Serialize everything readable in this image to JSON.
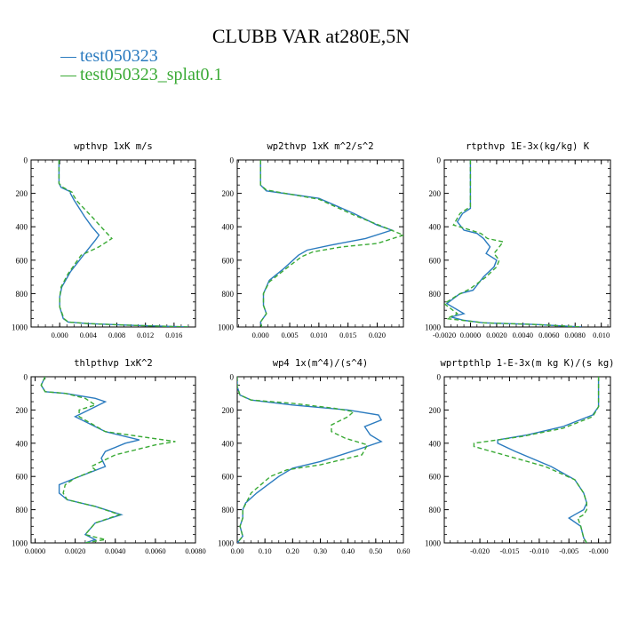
{
  "title": "CLUBB VAR at280E,5N",
  "legend": [
    {
      "label": "test050323",
      "color": "#2b7bbf"
    },
    {
      "label": "test050323_splat0.1",
      "color": "#3aaa35"
    }
  ],
  "chart_data": [
    {
      "type": "line",
      "title": "wpthvp  1xK m/s",
      "xlabel": "",
      "ylabel": "",
      "xlim": [
        -0.004,
        0.019
      ],
      "ylim": [
        1000,
        0
      ],
      "xticks": [
        0.0,
        0.004,
        0.008,
        0.012,
        0.016
      ],
      "xtick_labels": [
        "0.000",
        "0.004",
        "0.008",
        "0.012",
        "0.016"
      ],
      "yticks": [
        0,
        200,
        400,
        600,
        800,
        1000
      ],
      "series": [
        {
          "name": "test050323",
          "x": [
            -0.0001,
            -0.0001,
            -0.0001,
            0.0002,
            0.0015,
            0.0015,
            0.002,
            0.0035,
            0.0045,
            0.0055,
            0.005,
            0.0035,
            0.0015,
            0.0003,
            0.0,
            0.0,
            0.0005,
            0.0012,
            0.004,
            0.01,
            0.018
          ],
          "y": [
            0,
            80,
            140,
            165,
            190,
            200,
            240,
            340,
            400,
            450,
            480,
            560,
            670,
            760,
            820,
            880,
            950,
            970,
            980,
            990,
            1000
          ]
        },
        {
          "name": "test050323_splat0.1",
          "x": [
            -0.0001,
            -0.0001,
            -0.0001,
            0.0003,
            0.0018,
            0.0018,
            0.0025,
            0.0045,
            0.006,
            0.0073,
            0.0055,
            0.003,
            0.0012,
            0.0002,
            0.0,
            0.0,
            0.0006,
            0.0012,
            0.004,
            0.01,
            0.018
          ],
          "y": [
            0,
            80,
            140,
            160,
            195,
            205,
            250,
            340,
            410,
            470,
            520,
            570,
            680,
            760,
            820,
            880,
            950,
            970,
            980,
            990,
            1000
          ]
        }
      ]
    },
    {
      "type": "line",
      "title": "wp2thvp  1xK m^2/s^2",
      "xlabel": "",
      "ylabel": "",
      "xlim": [
        -0.004,
        0.0245
      ],
      "ylim": [
        1000,
        0
      ],
      "xticks": [
        0.0,
        0.005,
        0.01,
        0.015,
        0.02
      ],
      "xtick_labels": [
        "0.000",
        "0.005",
        "0.010",
        "0.015",
        "0.020"
      ],
      "yticks": [
        0,
        200,
        400,
        600,
        800,
        1000
      ],
      "series": [
        {
          "name": "test050323",
          "x": [
            0.0,
            0.0,
            0.0,
            0.001,
            0.005,
            0.01,
            0.016,
            0.02,
            0.0225,
            0.018,
            0.012,
            0.008,
            0.0065,
            0.004,
            0.0015,
            0.0005,
            0.0005,
            0.001,
            0.0,
            0.0002
          ],
          "y": [
            0,
            100,
            150,
            185,
            205,
            230,
            320,
            390,
            420,
            470,
            510,
            540,
            570,
            650,
            720,
            800,
            870,
            920,
            970,
            1000
          ]
        },
        {
          "name": "test050323_splat0.1",
          "x": [
            0.0,
            0.0,
            0.0,
            0.001,
            0.005,
            0.01,
            0.016,
            0.021,
            0.0245,
            0.02,
            0.014,
            0.009,
            0.007,
            0.004,
            0.0015,
            0.0005,
            0.0005,
            0.001,
            0.0,
            0.0002
          ],
          "y": [
            0,
            100,
            150,
            180,
            205,
            235,
            330,
            400,
            450,
            500,
            520,
            550,
            580,
            660,
            730,
            800,
            870,
            920,
            970,
            1000
          ]
        }
      ]
    },
    {
      "type": "line",
      "title": "rtpthvp  1E-3x(kg/kg) K",
      "xlabel": "",
      "ylabel": "",
      "xlim": [
        -0.002,
        0.0107
      ],
      "ylim": [
        1000,
        0
      ],
      "xticks": [
        -0.002,
        0.0,
        0.002,
        0.004,
        0.006,
        0.008,
        0.01
      ],
      "xtick_labels": [
        "-0.0020",
        "0.0000",
        "0.0020",
        "0.0040",
        "0.0060",
        "0.0080",
        "0.010"
      ],
      "yticks": [
        0,
        200,
        400,
        600,
        800,
        1000
      ],
      "series": [
        {
          "name": "test050323",
          "x": [
            0.0,
            0.0,
            0.0,
            0.0,
            -0.0006,
            -0.001,
            -0.0005,
            0.0005,
            0.001,
            0.0015,
            0.0012,
            0.002,
            0.0018,
            0.001,
            0.0002,
            -0.0008,
            -0.0018,
            -0.0005,
            -0.0015,
            -0.0005,
            0.001,
            0.005,
            0.0085
          ],
          "y": [
            0,
            100,
            200,
            290,
            320,
            370,
            420,
            440,
            470,
            520,
            560,
            600,
            640,
            700,
            780,
            800,
            860,
            920,
            940,
            960,
            975,
            985,
            1000
          ]
        },
        {
          "name": "test050323_splat0.1",
          "x": [
            0.0,
            0.0,
            0.0,
            0.0,
            -0.0008,
            -0.0013,
            -0.0004,
            0.0008,
            0.0013,
            0.0025,
            0.0018,
            0.0022,
            0.002,
            0.0012,
            0.0,
            -0.001,
            -0.002,
            -0.001,
            -0.0018,
            -0.0006,
            0.001,
            0.005,
            0.0085
          ],
          "y": [
            0,
            100,
            200,
            280,
            320,
            390,
            410,
            440,
            470,
            490,
            560,
            600,
            640,
            700,
            770,
            810,
            860,
            920,
            950,
            960,
            975,
            985,
            1000
          ]
        }
      ]
    },
    {
      "type": "line",
      "title": "thlpthvp  1xK^2",
      "xlabel": "",
      "ylabel": "",
      "xlim": [
        -0.0002,
        0.008
      ],
      "ylim": [
        1000,
        0
      ],
      "xticks": [
        0.0,
        0.002,
        0.004,
        0.006,
        0.008
      ],
      "xtick_labels": [
        "0.0000",
        "0.0020",
        "0.0040",
        "0.0060",
        "0.0080"
      ],
      "yticks": [
        0,
        200,
        400,
        600,
        800,
        1000
      ],
      "series": [
        {
          "name": "test050323",
          "x": [
            0.0005,
            0.0003,
            0.0005,
            0.0015,
            0.003,
            0.0035,
            0.003,
            0.002,
            0.0035,
            0.0052,
            0.0045,
            0.0035,
            0.0033,
            0.0035,
            0.002,
            0.0012,
            0.0012,
            0.0016,
            0.003,
            0.0043,
            0.003,
            0.0025,
            0.003,
            0.0025
          ],
          "y": [
            0,
            50,
            90,
            100,
            130,
            150,
            180,
            240,
            330,
            380,
            400,
            450,
            490,
            540,
            610,
            650,
            700,
            740,
            780,
            830,
            880,
            950,
            980,
            1000
          ]
        },
        {
          "name": "test050323_splat0.1",
          "x": [
            0.0005,
            0.0003,
            0.0005,
            0.0015,
            0.0025,
            0.003,
            0.0022,
            0.0022,
            0.0035,
            0.007,
            0.006,
            0.004,
            0.0028,
            0.003,
            0.002,
            0.0015,
            0.0014,
            0.0016,
            0.003,
            0.0042,
            0.003,
            0.0025,
            0.0035,
            0.0025
          ],
          "y": [
            0,
            50,
            90,
            100,
            130,
            170,
            200,
            240,
            330,
            390,
            410,
            470,
            540,
            560,
            610,
            650,
            700,
            740,
            780,
            830,
            880,
            950,
            980,
            1000
          ]
        }
      ]
    },
    {
      "type": "line",
      "title": "wp4  1x(m^4)/(s^4)",
      "xlabel": "",
      "ylabel": "",
      "xlim": [
        0.0,
        0.6
      ],
      "ylim": [
        1000,
        0
      ],
      "xticks": [
        0.0,
        0.1,
        0.2,
        0.3,
        0.4,
        0.5,
        0.6
      ],
      "xtick_labels": [
        "0.00",
        "0.10",
        "0.20",
        "0.30",
        "0.40",
        "0.50",
        "0.60"
      ],
      "yticks": [
        0,
        200,
        400,
        600,
        800,
        1000
      ],
      "series": [
        {
          "name": "test050323",
          "x": [
            0.0,
            0.0,
            0.01,
            0.05,
            0.2,
            0.4,
            0.51,
            0.52,
            0.46,
            0.48,
            0.52,
            0.45,
            0.3,
            0.2,
            0.15,
            0.07,
            0.03,
            0.02,
            0.02,
            0.01,
            0.02,
            0.0
          ],
          "y": [
            0,
            60,
            110,
            140,
            170,
            200,
            230,
            260,
            300,
            350,
            390,
            430,
            510,
            550,
            600,
            700,
            760,
            800,
            850,
            900,
            960,
            1000
          ]
        },
        {
          "name": "test050323_splat0.1",
          "x": [
            0.0,
            0.0,
            0.01,
            0.05,
            0.2,
            0.35,
            0.42,
            0.4,
            0.34,
            0.34,
            0.39,
            0.47,
            0.45,
            0.3,
            0.18,
            0.12,
            0.05,
            0.02,
            0.02,
            0.01,
            0.02,
            0.0
          ],
          "y": [
            0,
            60,
            110,
            140,
            160,
            190,
            210,
            240,
            290,
            330,
            370,
            410,
            470,
            530,
            560,
            600,
            700,
            800,
            850,
            900,
            960,
            1000
          ]
        }
      ]
    },
    {
      "type": "line",
      "title": "wprtpthlp  1-E-3x(m kg K)/(s kg)",
      "xlabel": "",
      "ylabel": "",
      "xlim": [
        -0.026,
        0.002
      ],
      "ylim": [
        1000,
        0
      ],
      "xticks": [
        -0.02,
        -0.015,
        -0.01,
        -0.005,
        0.0
      ],
      "xtick_labels": [
        "-0.020",
        "-0.015",
        "-0.010",
        "-0.005",
        "-0.000"
      ],
      "yticks": [
        0,
        200,
        400,
        600,
        800,
        1000
      ],
      "series": [
        {
          "name": "test050323",
          "x": [
            0.0,
            0.0,
            0.0,
            -0.001,
            -0.006,
            -0.012,
            -0.017,
            -0.017,
            -0.014,
            -0.008,
            -0.004,
            -0.0025,
            -0.002,
            -0.0025,
            -0.004,
            -0.005,
            -0.003,
            -0.0025,
            -0.002
          ],
          "y": [
            0,
            100,
            180,
            230,
            300,
            350,
            380,
            400,
            450,
            540,
            620,
            700,
            760,
            800,
            830,
            850,
            900,
            970,
            1000
          ]
        },
        {
          "name": "test050323_splat0.1",
          "x": [
            0.0,
            0.0,
            0.0,
            -0.001,
            -0.006,
            -0.013,
            -0.021,
            -0.021,
            -0.017,
            -0.009,
            -0.004,
            -0.0025,
            -0.002,
            -0.002,
            -0.0025,
            -0.0035,
            -0.003,
            -0.0025,
            -0.002
          ],
          "y": [
            0,
            100,
            180,
            240,
            310,
            360,
            400,
            420,
            460,
            540,
            620,
            700,
            760,
            800,
            830,
            850,
            900,
            970,
            1000
          ]
        }
      ]
    }
  ]
}
